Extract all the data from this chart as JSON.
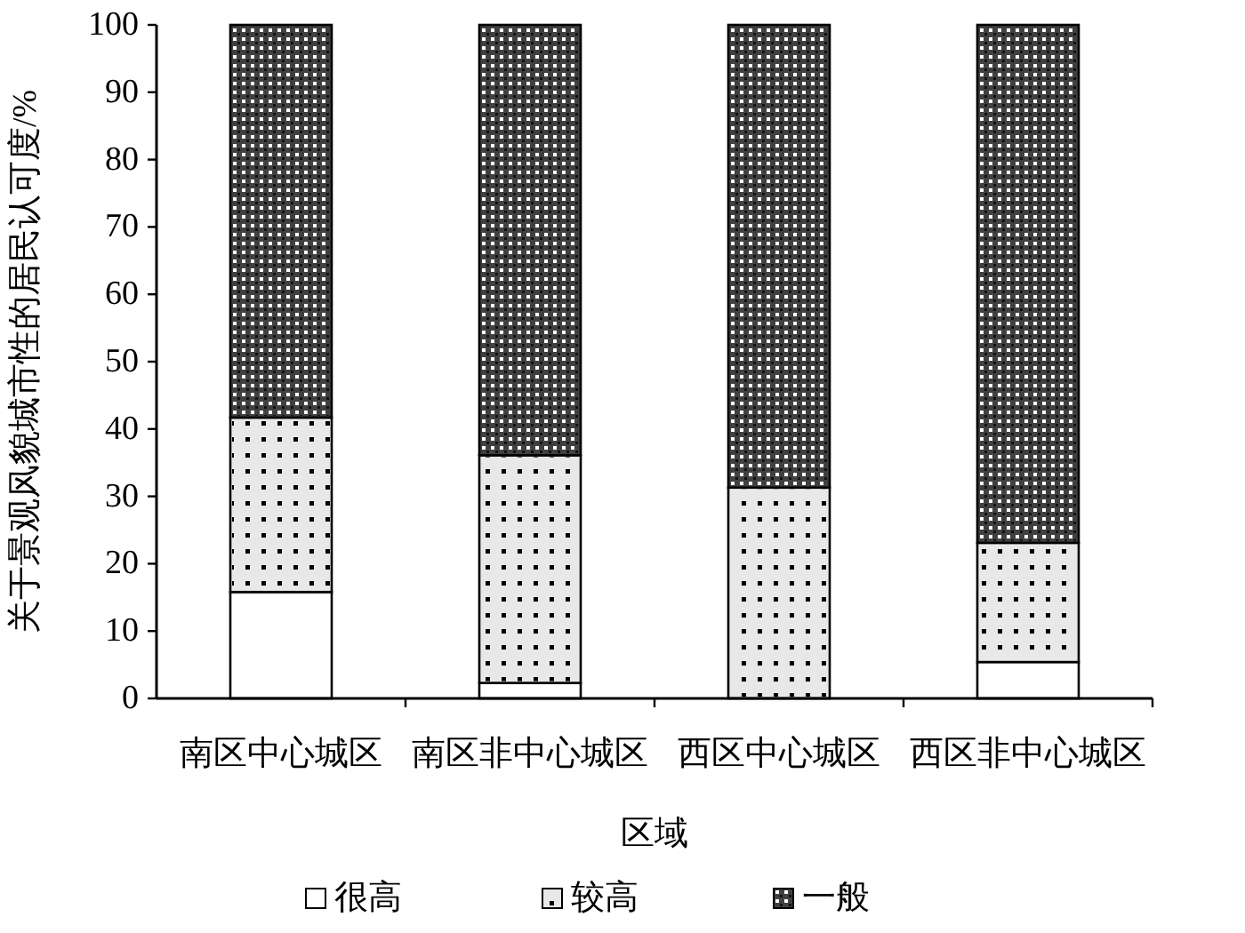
{
  "chart_data": {
    "type": "bar",
    "stacked": true,
    "xlabel": "区域",
    "ylabel": "关于景观风貌城市性的居民认可度/%",
    "categories": [
      "南区中心城区",
      "南区非中心城区",
      "西区中心城区",
      "西区非中心城区"
    ],
    "series": [
      {
        "name": "很高",
        "color": "#ffffff",
        "values": [
          15.8,
          2.3,
          0,
          5.4
        ]
      },
      {
        "name": "较高",
        "color": "#e8e8e8",
        "values": [
          25.9,
          33.8,
          31.3,
          17.7
        ]
      },
      {
        "name": "一般",
        "color": "#404040",
        "values": [
          58.3,
          63.9,
          68.7,
          76.9
        ]
      }
    ],
    "ylim": [
      0,
      100
    ],
    "yticks": [
      0,
      10,
      20,
      30,
      40,
      50,
      60,
      70,
      80,
      90,
      100
    ],
    "legend": "bottom",
    "grid": false
  }
}
